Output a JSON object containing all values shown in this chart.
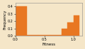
{
  "title": "",
  "xlabel": "Fitness",
  "ylabel": "Frequency",
  "bar_color": "#e87722",
  "background_color": "#f5e6c8",
  "fig_background": "#f5e6c8",
  "bar_edges": [
    0.0,
    0.2,
    0.4,
    0.6,
    0.8,
    0.9,
    1.0,
    1.1
  ],
  "bar_heights": [
    0.4,
    0.005,
    0.005,
    0.005,
    0.1,
    0.18,
    0.28
  ],
  "xlim": [
    0.0,
    1.15
  ],
  "ylim": [
    0.0,
    0.45
  ],
  "yticks": [
    0.0,
    0.1,
    0.2,
    0.3,
    0.4
  ],
  "xticks": [
    0.0,
    0.5,
    1.0
  ],
  "tick_labelsize": 3.5,
  "label_fontsize": 4.0
}
